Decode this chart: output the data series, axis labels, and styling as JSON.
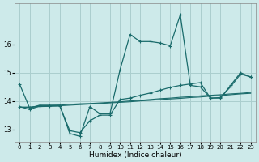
{
  "xlabel": "Humidex (Indice chaleur)",
  "ylabel": "",
  "background_color": "#cdeaea",
  "grid_color": "#aacece",
  "line_color": "#1a6b6b",
  "x": [
    0,
    1,
    2,
    3,
    4,
    5,
    6,
    7,
    8,
    9,
    10,
    11,
    12,
    13,
    14,
    15,
    16,
    17,
    18,
    19,
    20,
    21,
    22,
    23
  ],
  "line1": [
    14.6,
    13.75,
    13.85,
    13.85,
    13.85,
    12.85,
    12.75,
    13.8,
    13.55,
    13.55,
    15.1,
    16.35,
    16.1,
    16.1,
    16.05,
    15.95,
    17.05,
    14.55,
    14.5,
    14.1,
    14.1,
    14.55,
    15.0,
    14.85
  ],
  "line2": [
    13.8,
    13.7,
    13.82,
    13.82,
    13.82,
    12.95,
    12.88,
    13.3,
    13.5,
    13.5,
    14.05,
    14.1,
    14.2,
    14.28,
    14.38,
    14.48,
    14.55,
    14.6,
    14.65,
    14.1,
    14.12,
    14.5,
    14.95,
    14.85
  ],
  "line3": [
    13.78,
    13.78,
    13.82,
    13.83,
    13.85,
    13.88,
    13.9,
    13.91,
    13.93,
    13.95,
    13.97,
    14.0,
    14.02,
    14.05,
    14.08,
    14.1,
    14.13,
    14.15,
    14.18,
    14.2,
    14.22,
    14.25,
    14.27,
    14.3
  ],
  "line4": [
    13.78,
    13.78,
    13.8,
    13.81,
    13.83,
    13.85,
    13.87,
    13.89,
    13.91,
    13.93,
    13.95,
    13.97,
    14.0,
    14.02,
    14.05,
    14.07,
    14.09,
    14.12,
    14.14,
    14.17,
    14.19,
    14.22,
    14.25,
    14.27
  ],
  "xlim": [
    -0.5,
    23.5
  ],
  "ylim": [
    12.55,
    17.45
  ],
  "yticks": [
    13,
    14,
    15,
    16
  ],
  "xticks": [
    0,
    1,
    2,
    3,
    4,
    5,
    6,
    7,
    8,
    9,
    10,
    11,
    12,
    13,
    14,
    15,
    16,
    17,
    18,
    19,
    20,
    21,
    22,
    23
  ]
}
